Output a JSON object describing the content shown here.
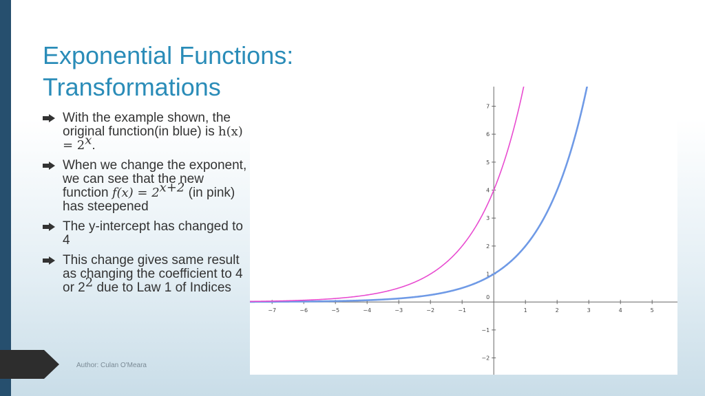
{
  "slide": {
    "title_line1": "Exponential Functions:",
    "title_line2": "Transformations",
    "author": "Author: Culan O'Meara"
  },
  "bullets": {
    "b1_pre": "With the example shown, the original function(in blue) is ",
    "b1_math": "h(x) = 2",
    "b1_sup": "x",
    "b1_post": ".",
    "b2_pre": "When we change the exponent, we can see that the new function ",
    "b2_math": "f(x) = 2",
    "b2_sup": "x+2",
    "b2_post": " (in pink) has steepened",
    "b3": "The y-intercept has changed to 4",
    "b4_pre": "This change gives same result as changing the coefficient to 4 or 2",
    "b4_sup": "2",
    "b4_post": " due to Law 1 of Indices"
  },
  "colors": {
    "title": "#2a8cb8",
    "left_bar": "#264f6e",
    "blue_curve": "#6f9ae6",
    "pink_curve": "#e84bd0"
  },
  "chart_data": {
    "type": "line",
    "xlim": [
      -7.7,
      5.8
    ],
    "ylim": [
      -2.6,
      7.7
    ],
    "x_ticks": [
      -7,
      -6,
      -5,
      -4,
      -3,
      -2,
      -1,
      1,
      2,
      3,
      4,
      5
    ],
    "y_ticks": [
      -2,
      -1,
      1,
      2,
      3,
      4,
      5,
      6,
      7
    ],
    "origin_label": "0",
    "x_tick_labels": [
      "−7",
      "−6",
      "−5",
      "−4",
      "−3",
      "−2",
      "−1",
      "1",
      "2",
      "3",
      "4",
      "5"
    ],
    "y_tick_labels": [
      "−2",
      "−1",
      "1",
      "2",
      "3",
      "4",
      "5",
      "6",
      "7"
    ],
    "series": [
      {
        "function": "2^x",
        "color": "#6f9ae6",
        "samples": [
          [
            -7,
            0.0078
          ],
          [
            -5,
            0.031
          ],
          [
            -3,
            0.125
          ],
          [
            -1,
            0.5
          ],
          [
            0,
            1
          ],
          [
            1,
            2
          ],
          [
            2,
            4
          ],
          [
            2.95,
            7.7
          ]
        ]
      },
      {
        "function": "2^(x+2)",
        "color": "#e84bd0",
        "samples": [
          [
            -7,
            0.031
          ],
          [
            -5,
            0.125
          ],
          [
            -3,
            0.5
          ],
          [
            -2,
            1
          ],
          [
            -1,
            2
          ],
          [
            0,
            4
          ],
          [
            0.95,
            7.7
          ]
        ]
      }
    ]
  }
}
